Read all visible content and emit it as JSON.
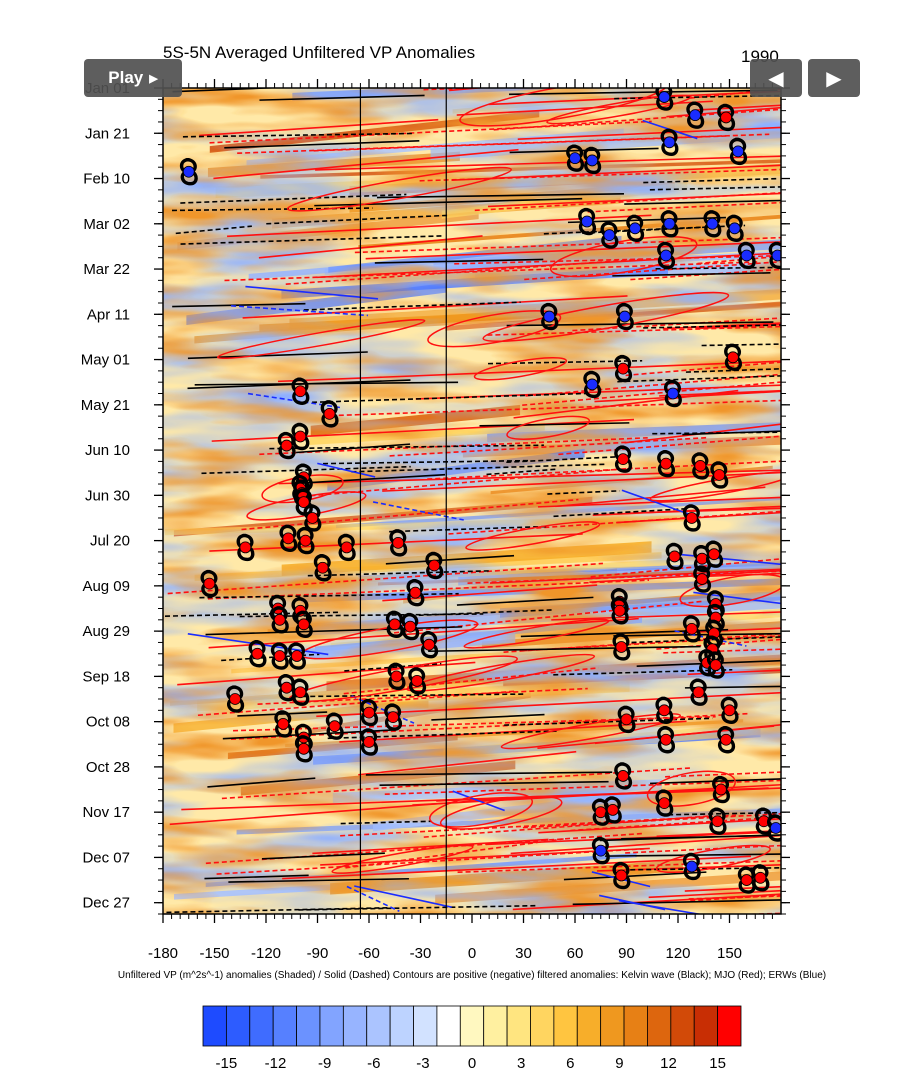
{
  "controls": {
    "play_label": "Play",
    "play_icon": "triangle-right-icon",
    "prev_icon": "triangle-left-icon",
    "next_icon": "triangle-right-icon"
  },
  "chart_data": {
    "type": "heatmap",
    "title": "5S-5N Averaged Unfiltered VP Anomalies",
    "year": "1990",
    "caption": "Unfiltered VP (m^2s^-1) anomalies (Shaded) /  Solid (Dashed) Contours are positive (negative) filtered anomalies: Kelvin wave (Black); MJO (Red); ERWs (Blue)",
    "x_ticks": [
      -180,
      -150,
      -120,
      -90,
      -60,
      -30,
      0,
      30,
      60,
      90,
      120,
      150
    ],
    "xlim": [
      -180,
      180
    ],
    "y_ticks": [
      "Jan 01",
      "Jan 21",
      "Feb 10",
      "Mar 02",
      "Mar 22",
      "Apr 11",
      "May 01",
      "May 21",
      "Jun 10",
      "Jun 30",
      "Jul 20",
      "Aug 09",
      "Aug 29",
      "Sep 18",
      "Oct 08",
      "Oct 28",
      "Nov 17",
      "Dec 07",
      "Dec 27"
    ],
    "ylim": [
      "Jan 01",
      "Dec 31"
    ],
    "y_reversed": true,
    "vertical_reference_lines_x": [
      -65,
      -15
    ],
    "colorbar": {
      "levels": [
        -15,
        -12,
        -9,
        -6,
        -3,
        0,
        3,
        6,
        9,
        12,
        15
      ],
      "colors": [
        "#1e4bff",
        "#2d5cff",
        "#3f6cff",
        "#5680ff",
        "#6b92ff",
        "#82a4ff",
        "#97b4ff",
        "#abc4ff",
        "#bdd3ff",
        "#d2e2ff",
        "#ffffff",
        "#fff8c0",
        "#fff0a0",
        "#ffe580",
        "#ffd560",
        "#ffc540",
        "#f7ae2a",
        "#ef981f",
        "#e78015",
        "#dd660e",
        "#d24a08",
        "#c82e04",
        "#ff0000"
      ]
    },
    "tropical_cyclones": [
      {
        "lon": -165,
        "date": "Feb 07",
        "type": "depression"
      },
      {
        "lon": -100,
        "date": "May 15",
        "type": "storm"
      },
      {
        "lon": -83,
        "date": "May 25",
        "type": "storm"
      },
      {
        "lon": -100,
        "date": "Jun 04",
        "type": "storm"
      },
      {
        "lon": -108,
        "date": "Jun 08",
        "type": "storm"
      },
      {
        "lon": -98,
        "date": "Jun 22",
        "type": "storm"
      },
      {
        "lon": -100,
        "date": "Jun 27",
        "type": "storm"
      },
      {
        "lon": -99,
        "date": "Jun 29",
        "type": "storm"
      },
      {
        "lon": -98,
        "date": "Jul 03",
        "type": "storm"
      },
      {
        "lon": -93,
        "date": "Jul 10",
        "type": "storm"
      },
      {
        "lon": -107,
        "date": "Jul 19",
        "type": "storm"
      },
      {
        "lon": -97,
        "date": "Jul 20",
        "type": "storm"
      },
      {
        "lon": -132,
        "date": "Jul 23",
        "type": "storm"
      },
      {
        "lon": -73,
        "date": "Jul 23",
        "type": "storm"
      },
      {
        "lon": -87,
        "date": "Aug 01",
        "type": "storm"
      },
      {
        "lon": -43,
        "date": "Jul 21",
        "type": "storm"
      },
      {
        "lon": -22,
        "date": "Jul 31",
        "type": "storm"
      },
      {
        "lon": -153,
        "date": "Aug 08",
        "type": "storm"
      },
      {
        "lon": -33,
        "date": "Aug 12",
        "type": "storm"
      },
      {
        "lon": -113,
        "date": "Aug 19",
        "type": "storm"
      },
      {
        "lon": -100,
        "date": "Aug 20",
        "type": "storm"
      },
      {
        "lon": -112,
        "date": "Aug 24",
        "type": "storm"
      },
      {
        "lon": -98,
        "date": "Aug 26",
        "type": "storm"
      },
      {
        "lon": -45,
        "date": "Aug 26",
        "type": "storm"
      },
      {
        "lon": -36,
        "date": "Aug 27",
        "type": "storm"
      },
      {
        "lon": -25,
        "date": "Sep 04",
        "type": "storm"
      },
      {
        "lon": -125,
        "date": "Sep 08",
        "type": "storm"
      },
      {
        "lon": -112,
        "date": "Sep 09",
        "type": "storm"
      },
      {
        "lon": -102,
        "date": "Sep 09",
        "type": "storm"
      },
      {
        "lon": -44,
        "date": "Sep 18",
        "type": "storm"
      },
      {
        "lon": -32,
        "date": "Sep 20",
        "type": "storm"
      },
      {
        "lon": -108,
        "date": "Sep 23",
        "type": "storm"
      },
      {
        "lon": -100,
        "date": "Sep 25",
        "type": "storm"
      },
      {
        "lon": -138,
        "date": "Sep 28",
        "type": "storm"
      },
      {
        "lon": -110,
        "date": "Oct 09",
        "type": "storm"
      },
      {
        "lon": -80,
        "date": "Oct 10",
        "type": "storm"
      },
      {
        "lon": -60,
        "date": "Oct 04",
        "type": "storm"
      },
      {
        "lon": -46,
        "date": "Oct 06",
        "type": "storm"
      },
      {
        "lon": -60,
        "date": "Oct 17",
        "type": "storm"
      },
      {
        "lon": -98,
        "date": "Oct 15",
        "type": "storm"
      },
      {
        "lon": -98,
        "date": "Oct 20",
        "type": "storm"
      },
      {
        "lon": 112,
        "date": "Jan 05",
        "type": "depression"
      },
      {
        "lon": 130,
        "date": "Jan 13",
        "type": "depression"
      },
      {
        "lon": 148,
        "date": "Jan 14",
        "type": "storm"
      },
      {
        "lon": 115,
        "date": "Jan 25",
        "type": "depression"
      },
      {
        "lon": 155,
        "date": "Jan 29",
        "type": "depression"
      },
      {
        "lon": 60,
        "date": "Feb 01",
        "type": "depression"
      },
      {
        "lon": 70,
        "date": "Feb 02",
        "type": "depression"
      },
      {
        "lon": 67,
        "date": "Mar 01",
        "type": "depression"
      },
      {
        "lon": 80,
        "date": "Mar 07",
        "type": "depression"
      },
      {
        "lon": 95,
        "date": "Mar 04",
        "type": "depression"
      },
      {
        "lon": 115,
        "date": "Mar 02",
        "type": "depression"
      },
      {
        "lon": 140,
        "date": "Mar 02",
        "type": "depression"
      },
      {
        "lon": 153,
        "date": "Mar 04",
        "type": "depression"
      },
      {
        "lon": 113,
        "date": "Mar 16",
        "type": "depression"
      },
      {
        "lon": 160,
        "date": "Mar 16",
        "type": "depression"
      },
      {
        "lon": 178,
        "date": "Mar 16",
        "type": "depression"
      },
      {
        "lon": 45,
        "date": "Apr 12",
        "type": "depression"
      },
      {
        "lon": 89,
        "date": "Apr 12",
        "type": "depression"
      },
      {
        "lon": 152,
        "date": "Apr 30",
        "type": "storm"
      },
      {
        "lon": 88,
        "date": "May 05",
        "type": "storm"
      },
      {
        "lon": 70,
        "date": "May 12",
        "type": "depression"
      },
      {
        "lon": 117,
        "date": "May 16",
        "type": "depression"
      },
      {
        "lon": 88,
        "date": "Jun 14",
        "type": "storm"
      },
      {
        "lon": 113,
        "date": "Jun 16",
        "type": "storm"
      },
      {
        "lon": 133,
        "date": "Jun 17",
        "type": "storm"
      },
      {
        "lon": 144,
        "date": "Jun 21",
        "type": "storm"
      },
      {
        "lon": 128,
        "date": "Jul 10",
        "type": "storm"
      },
      {
        "lon": 118,
        "date": "Jul 27",
        "type": "storm"
      },
      {
        "lon": 134,
        "date": "Jul 28",
        "type": "storm"
      },
      {
        "lon": 141,
        "date": "Jul 26",
        "type": "storm"
      },
      {
        "lon": 134,
        "date": "Aug 06",
        "type": "storm"
      },
      {
        "lon": 86,
        "date": "Aug 16",
        "type": "storm"
      },
      {
        "lon": 86,
        "date": "Aug 20",
        "type": "storm"
      },
      {
        "lon": 142,
        "date": "Aug 17",
        "type": "storm"
      },
      {
        "lon": 142,
        "date": "Aug 23",
        "type": "storm"
      },
      {
        "lon": 128,
        "date": "Aug 28",
        "type": "storm"
      },
      {
        "lon": 141,
        "date": "Aug 30",
        "type": "storm"
      },
      {
        "lon": 87,
        "date": "Sep 05",
        "type": "storm"
      },
      {
        "lon": 140,
        "date": "Sep 06",
        "type": "storm"
      },
      {
        "lon": 137,
        "date": "Sep 12",
        "type": "storm"
      },
      {
        "lon": 142,
        "date": "Sep 13",
        "type": "storm"
      },
      {
        "lon": 132,
        "date": "Sep 25",
        "type": "storm"
      },
      {
        "lon": 112,
        "date": "Oct 03",
        "type": "storm"
      },
      {
        "lon": 150,
        "date": "Oct 03",
        "type": "storm"
      },
      {
        "lon": 90,
        "date": "Oct 07",
        "type": "storm"
      },
      {
        "lon": 113,
        "date": "Oct 16",
        "type": "storm"
      },
      {
        "lon": 148,
        "date": "Oct 16",
        "type": "storm"
      },
      {
        "lon": 88,
        "date": "Nov 01",
        "type": "storm"
      },
      {
        "lon": 145,
        "date": "Nov 07",
        "type": "storm"
      },
      {
        "lon": 112,
        "date": "Nov 13",
        "type": "storm"
      },
      {
        "lon": 75,
        "date": "Nov 17",
        "type": "storm"
      },
      {
        "lon": 82,
        "date": "Nov 16",
        "type": "storm"
      },
      {
        "lon": 143,
        "date": "Nov 21",
        "type": "storm"
      },
      {
        "lon": 170,
        "date": "Nov 21",
        "type": "storm"
      },
      {
        "lon": 177,
        "date": "Nov 24",
        "type": "depression"
      },
      {
        "lon": 75,
        "date": "Dec 04",
        "type": "depression"
      },
      {
        "lon": 128,
        "date": "Dec 11",
        "type": "depression"
      },
      {
        "lon": 87,
        "date": "Dec 15",
        "type": "storm"
      },
      {
        "lon": 160,
        "date": "Dec 17",
        "type": "storm"
      },
      {
        "lon": 168,
        "date": "Dec 16",
        "type": "storm"
      }
    ]
  }
}
